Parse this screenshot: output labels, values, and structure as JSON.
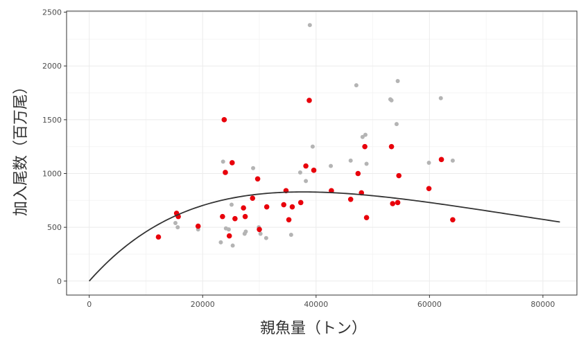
{
  "chart_data": {
    "type": "scatter",
    "xlabel": "親魚量（トン）",
    "ylabel": "加入尾数（百万尾）",
    "xlim": [
      -4000,
      86000
    ],
    "ylim": [
      -130,
      2510
    ],
    "x_ticks": [
      0,
      20000,
      40000,
      60000,
      80000
    ],
    "y_ticks": [
      0,
      500,
      1000,
      1500,
      2000,
      2500
    ],
    "x_tick_labels": [
      "0",
      "20000",
      "40000",
      "60000",
      "80000"
    ],
    "y_tick_labels": [
      "0",
      "500",
      "1000",
      "1500",
      "2000",
      "2500"
    ],
    "grid": true,
    "legend": "none",
    "colors": {
      "highlight": "#e8000b",
      "background_points": "#b4b4b4",
      "curve": "#333333",
      "grid": "#ebebeb"
    },
    "series": [
      {
        "style": "gray-points",
        "points": [
          [
            15200,
            540
          ],
          [
            15600,
            500
          ],
          [
            19200,
            480
          ],
          [
            23200,
            360
          ],
          [
            23600,
            1110
          ],
          [
            24100,
            490
          ],
          [
            24600,
            480
          ],
          [
            25100,
            710
          ],
          [
            25300,
            330
          ],
          [
            27400,
            440
          ],
          [
            27600,
            460
          ],
          [
            28900,
            1050
          ],
          [
            29900,
            500
          ],
          [
            30200,
            440
          ],
          [
            31200,
            400
          ],
          [
            35600,
            430
          ],
          [
            37200,
            1010
          ],
          [
            38200,
            930
          ],
          [
            38900,
            2380
          ],
          [
            39400,
            1250
          ],
          [
            42600,
            1070
          ],
          [
            46100,
            1120
          ],
          [
            47100,
            1820
          ],
          [
            48200,
            1340
          ],
          [
            48700,
            1360
          ],
          [
            48900,
            1090
          ],
          [
            53100,
            1690
          ],
          [
            53300,
            1680
          ],
          [
            54200,
            1460
          ],
          [
            54400,
            1860
          ],
          [
            59900,
            1100
          ],
          [
            62000,
            1700
          ],
          [
            64100,
            1120
          ]
        ]
      },
      {
        "style": "red-points",
        "points": [
          [
            12200,
            410
          ],
          [
            15400,
            630
          ],
          [
            15700,
            600
          ],
          [
            19200,
            510
          ],
          [
            23500,
            600
          ],
          [
            23800,
            1500
          ],
          [
            24000,
            1010
          ],
          [
            24700,
            420
          ],
          [
            25200,
            1100
          ],
          [
            25700,
            580
          ],
          [
            27200,
            680
          ],
          [
            27500,
            600
          ],
          [
            28800,
            770
          ],
          [
            29700,
            950
          ],
          [
            30000,
            480
          ],
          [
            31300,
            690
          ],
          [
            34300,
            710
          ],
          [
            34700,
            840
          ],
          [
            35200,
            570
          ],
          [
            35800,
            690
          ],
          [
            37300,
            730
          ],
          [
            38200,
            1070
          ],
          [
            38800,
            1680
          ],
          [
            39600,
            1030
          ],
          [
            42700,
            840
          ],
          [
            46100,
            760
          ],
          [
            47400,
            1000
          ],
          [
            48000,
            820
          ],
          [
            48600,
            1250
          ],
          [
            48900,
            590
          ],
          [
            53300,
            1250
          ],
          [
            53500,
            720
          ],
          [
            54400,
            730
          ],
          [
            54600,
            980
          ],
          [
            59900,
            860
          ],
          [
            62100,
            1130
          ],
          [
            64100,
            570
          ]
        ]
      },
      {
        "style": "fitted-curve",
        "model": "ricker",
        "a": 0.0597,
        "b": 2.65e-05,
        "x_range": [
          0,
          83000
        ]
      }
    ]
  }
}
